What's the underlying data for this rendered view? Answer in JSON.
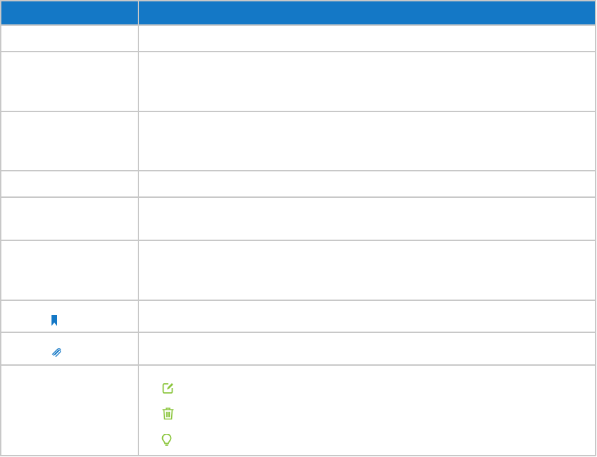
{
  "colors": {
    "header": "#1478c6",
    "border": "#c8c8c8",
    "primary_icon": "#1478c6",
    "action_icon": "#8cc63f"
  },
  "table": {
    "header": [
      "",
      ""
    ],
    "rows": [
      {
        "icon": null,
        "actions": []
      },
      {
        "icon": null,
        "actions": []
      },
      {
        "icon": null,
        "actions": []
      },
      {
        "icon": null,
        "actions": []
      },
      {
        "icon": null,
        "actions": []
      },
      {
        "icon": null,
        "actions": []
      },
      {
        "icon": "bookmark-icon",
        "actions": []
      },
      {
        "icon": "paperclip-icon",
        "actions": []
      },
      {
        "icon": null,
        "actions": [
          "edit-icon",
          "trash-icon",
          "lightbulb-icon"
        ]
      }
    ]
  }
}
